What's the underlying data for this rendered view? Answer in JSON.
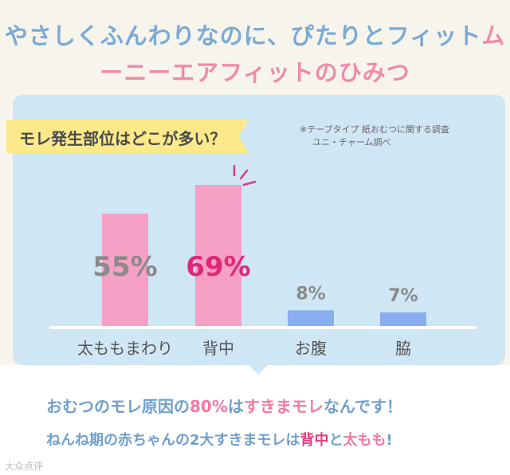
{
  "headline": {
    "line1_part1": "やさしくふんわりなのに、ぴたりとフィット",
    "line1_part2": "ム",
    "line2": "ーニーエアフィットのひみつ"
  },
  "question": "モレ発生部位はどこが多い？",
  "note": {
    "line1": "※テープタイプ 紙おむつに関する調査",
    "line2": "ユニ・チャーム調べ"
  },
  "chart_data": {
    "type": "bar",
    "categories": [
      "太ももまわり",
      "背中",
      "お腹",
      "脇"
    ],
    "values": [
      55,
      69,
      8,
      7
    ],
    "value_labels": [
      "55%",
      "69%",
      "8%",
      "7%"
    ],
    "ylim": [
      0,
      75
    ],
    "grid": false,
    "colors": {
      "pink_bar": "#f5a0c4",
      "blue_bar": "#88aef0",
      "label_gray": "#8a8a8a",
      "label_highlight": "#e0287a",
      "baseline": "#ffffff",
      "burst": "#e03c7a"
    }
  },
  "footer": {
    "l1_a": "おむつのモレ原因の",
    "l1_b": "80%",
    "l1_c": "は",
    "l1_d": "すきまモレ",
    "l1_e": "なんです！",
    "l2_a": "ねんね期の赤ちゃん",
    "l2_b": "の2大すきまモレは",
    "l2_c": "背中",
    "l2_d": "と",
    "l2_e": "太もも",
    "l2_f": "!"
  },
  "watermark": "大众点评"
}
